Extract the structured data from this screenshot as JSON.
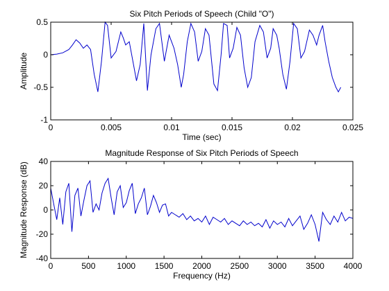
{
  "colors": {
    "line": "#0000cc",
    "axes": "#000000",
    "background": "#ffffff"
  },
  "chart_data": [
    {
      "type": "line",
      "title": "Six Pitch Periods of Speech (Child \"O\")",
      "xlabel": "Time (sec)",
      "ylabel": "Amplitude",
      "xlim": [
        0,
        0.025
      ],
      "ylim": [
        -1,
        0.5
      ],
      "xticks": [
        0,
        0.005,
        0.01,
        0.015,
        0.02,
        0.025
      ],
      "xtick_labels": [
        "0",
        "0.005",
        "0.01",
        "0.015",
        "0.02",
        "0.025"
      ],
      "yticks": [
        -1,
        -0.5,
        0,
        0.5
      ],
      "ytick_labels": [
        "-1",
        "-0.5",
        "0",
        "0.5"
      ],
      "grid": false,
      "series": [
        {
          "x": [
            0,
            0.0005,
            0.001,
            0.0015,
            0.0018,
            0.0021,
            0.0024,
            0.0027,
            0.003,
            0.0033,
            0.0036,
            0.0039,
            0.0042,
            0.0045,
            0.0047,
            0.005,
            0.0054,
            0.0058,
            0.006,
            0.0062,
            0.0065,
            0.0068,
            0.0071,
            0.0074,
            0.0077,
            0.008,
            0.0083,
            0.0087,
            0.009,
            0.0094,
            0.0098,
            0.01,
            0.0102,
            0.0105,
            0.0108,
            0.011,
            0.0113,
            0.0116,
            0.0119,
            0.0122,
            0.0125,
            0.0128,
            0.0131,
            0.0135,
            0.0138,
            0.0141,
            0.0143,
            0.0146,
            0.0148,
            0.0151,
            0.0154,
            0.0157,
            0.016,
            0.0163,
            0.0166,
            0.0169,
            0.0173,
            0.0176,
            0.0179,
            0.0182,
            0.0184,
            0.0187,
            0.0189,
            0.0192,
            0.0195,
            0.0198,
            0.0201,
            0.0204,
            0.0207,
            0.021,
            0.0214,
            0.0217,
            0.022,
            0.0222,
            0.0225,
            0.0227,
            0.023,
            0.0233,
            0.0236,
            0.0238,
            0.024
          ],
          "y": [
            0,
            0.01,
            0.03,
            0.08,
            0.15,
            0.23,
            0.18,
            0.1,
            0.15,
            0.08,
            -0.3,
            -0.57,
            -0.1,
            0.5,
            0.45,
            -0.05,
            0.05,
            0.35,
            0.26,
            0.15,
            0.2,
            -0.1,
            -0.4,
            -0.15,
            0.48,
            -0.55,
            0.0,
            0.4,
            0.48,
            -0.1,
            0.3,
            0.2,
            0.1,
            -0.15,
            -0.5,
            -0.3,
            0.2,
            0.48,
            0.35,
            -0.1,
            0.05,
            0.4,
            0.3,
            -0.45,
            -0.55,
            0.0,
            0.48,
            0.45,
            -0.05,
            0.1,
            0.42,
            0.3,
            -0.2,
            -0.5,
            -0.35,
            0.2,
            0.45,
            0.35,
            -0.05,
            0.1,
            0.4,
            0.3,
            0.1,
            -0.3,
            -0.53,
            -0.1,
            0.48,
            0.4,
            -0.05,
            0.05,
            0.38,
            0.3,
            0.15,
            0.3,
            0.45,
            0.2,
            -0.1,
            -0.35,
            -0.5,
            -0.57,
            -0.5
          ]
        }
      ]
    },
    {
      "type": "line",
      "title": "Magnitude Response of Six Pitch Periods of Speech",
      "xlabel": "Frequency (Hz)",
      "ylabel": "Magnitude Response (dB)",
      "xlim": [
        0,
        4000
      ],
      "ylim": [
        -40,
        40
      ],
      "xticks": [
        0,
        500,
        1000,
        1500,
        2000,
        2500,
        3000,
        3500,
        4000
      ],
      "xtick_labels": [
        "0",
        "500",
        "1000",
        "1500",
        "2000",
        "2500",
        "3000",
        "3500",
        "4000"
      ],
      "yticks": [
        -40,
        -20,
        0,
        20,
        40
      ],
      "ytick_labels": [
        "-40",
        "-20",
        "0",
        "20",
        "40"
      ],
      "grid": false,
      "series": [
        {
          "x": [
            0,
            40,
            80,
            120,
            160,
            200,
            240,
            280,
            320,
            360,
            400,
            440,
            480,
            520,
            560,
            600,
            640,
            680,
            720,
            760,
            800,
            840,
            880,
            920,
            960,
            1000,
            1040,
            1080,
            1120,
            1160,
            1200,
            1240,
            1280,
            1320,
            1360,
            1400,
            1440,
            1480,
            1520,
            1560,
            1600,
            1650,
            1700,
            1750,
            1800,
            1850,
            1900,
            1950,
            2000,
            2050,
            2100,
            2150,
            2200,
            2250,
            2300,
            2350,
            2400,
            2450,
            2500,
            2550,
            2600,
            2650,
            2700,
            2750,
            2800,
            2850,
            2900,
            2950,
            3000,
            3050,
            3100,
            3150,
            3200,
            3250,
            3300,
            3350,
            3400,
            3450,
            3500,
            3550,
            3600,
            3650,
            3700,
            3750,
            3800,
            3850,
            3900,
            3950,
            4000
          ],
          "y": [
            18,
            5,
            -8,
            10,
            -12,
            15,
            22,
            -18,
            12,
            18,
            -5,
            8,
            20,
            24,
            -2,
            5,
            0,
            14,
            22,
            26,
            10,
            -4,
            15,
            20,
            2,
            6,
            16,
            22,
            -3,
            5,
            10,
            18,
            -4,
            3,
            12,
            6,
            -2,
            4,
            5,
            -5,
            -2,
            -4,
            -6,
            -3,
            -8,
            -5,
            -9,
            -7,
            -10,
            -5,
            -12,
            -6,
            -8,
            -10,
            -7,
            -12,
            -9,
            -11,
            -13,
            -9,
            -12,
            -10,
            -13,
            -11,
            -14,
            -8,
            -15,
            -9,
            -12,
            -10,
            -14,
            -7,
            -13,
            -9,
            -5,
            -16,
            -11,
            -4,
            -12,
            -26,
            -2,
            -8,
            -12,
            -5,
            -10,
            -2,
            -9,
            -6,
            -7
          ]
        }
      ]
    }
  ]
}
